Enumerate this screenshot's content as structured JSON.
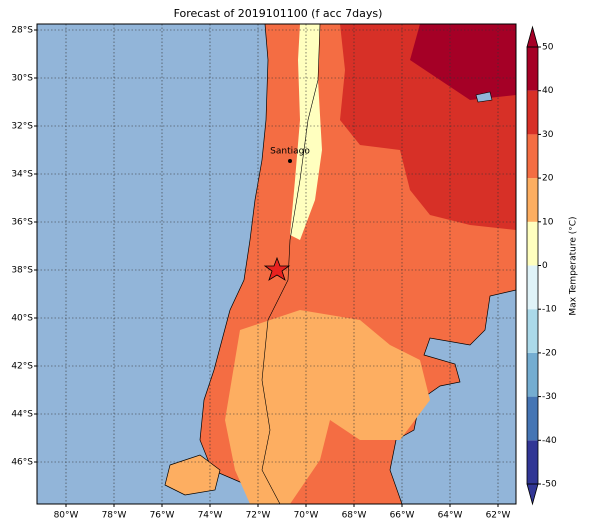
{
  "title": "Forecast of 2019101100 (f acc 7days)",
  "map": {
    "lon_ticks": [
      {
        "value": -80,
        "label": "80°W"
      },
      {
        "value": -78,
        "label": "78°W"
      },
      {
        "value": -76,
        "label": "76°W"
      },
      {
        "value": -74,
        "label": "74°W"
      },
      {
        "value": -72,
        "label": "72°W"
      },
      {
        "value": -70,
        "label": "70°W"
      },
      {
        "value": -68,
        "label": "68°W"
      },
      {
        "value": -66,
        "label": "66°W"
      },
      {
        "value": -64,
        "label": "64°W"
      },
      {
        "value": -62,
        "label": "62°W"
      }
    ],
    "lat_ticks": [
      {
        "value": -28,
        "label": "28°S"
      },
      {
        "value": -30,
        "label": "30°S"
      },
      {
        "value": -32,
        "label": "32°S"
      },
      {
        "value": -34,
        "label": "34°S"
      },
      {
        "value": -36,
        "label": "36°S"
      },
      {
        "value": -38,
        "label": "38°S"
      },
      {
        "value": -40,
        "label": "40°S"
      },
      {
        "value": -42,
        "label": "42°S"
      },
      {
        "value": -44,
        "label": "44°S"
      },
      {
        "value": -46,
        "label": "46°S"
      }
    ],
    "city_label": "Santiago"
  },
  "colorbar": {
    "label": "Max Temperature (°C)",
    "ticks": [
      -50,
      -40,
      -30,
      -20,
      -10,
      0,
      10,
      20,
      30,
      40,
      50
    ],
    "colors": [
      "#313695",
      "#4575b4",
      "#74add1",
      "#abd9e9",
      "#e0f3f8",
      "#ffffbf",
      "#fdae61",
      "#f46d43",
      "#d73027",
      "#a50026"
    ]
  }
}
